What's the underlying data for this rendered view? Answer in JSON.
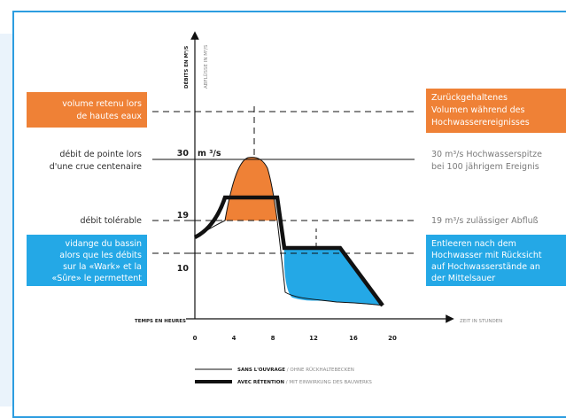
{
  "colors": {
    "frame": "#2c9de0",
    "orange": "#ef8136",
    "blue": "#24a8e6",
    "black": "#111111"
  },
  "y_axis": {
    "caption_fr": "DÉBITS EN M³/S",
    "caption_de": "ABFLÜSSE IN M³/S",
    "ticks": [
      "10",
      "19",
      "30"
    ],
    "unit": "m ³/s"
  },
  "x_axis": {
    "caption_fr": "TEMPS EN HEURES",
    "caption_de": "ZEIT IN STUNDEN",
    "ticks": [
      "0",
      "4",
      "8",
      "12",
      "16",
      "20"
    ]
  },
  "left_labels": {
    "retained_box": [
      "volume retenu lors",
      "de hautes eaux"
    ],
    "peak": [
      "débit de pointe lors",
      "d'une crue centenaire"
    ],
    "tolerable": "débit tolérable",
    "drain_box": [
      "vidange du bassin",
      "alors que les débits",
      "sur la «Wark» et la",
      "«Sûre» le permettent"
    ]
  },
  "right_labels": {
    "retained_box": [
      "Zurückgehaltenes",
      "Volumen während des",
      "Hochwasserereignisses"
    ],
    "peak": [
      "30 m³/s Hochwasserspitze",
      "bei 100 jährigem Ereignis"
    ],
    "tolerable": "19 m³/s zulässiger Abfluß",
    "drain_box": [
      "Entleeren nach dem",
      "Hochwasser mit Rücksicht",
      "auf Hochwasserstände an",
      "der Mittelsauer"
    ]
  },
  "legend": {
    "thin": {
      "bold": "SANS L'OUVRAGE",
      "grey": " / OHNE RÜCKHALTEBECKEN"
    },
    "thick": {
      "bold": "AVEC RÉTENTION",
      "grey": " / MIT EINWIRKUNG DES BAUWERKS"
    }
  }
}
